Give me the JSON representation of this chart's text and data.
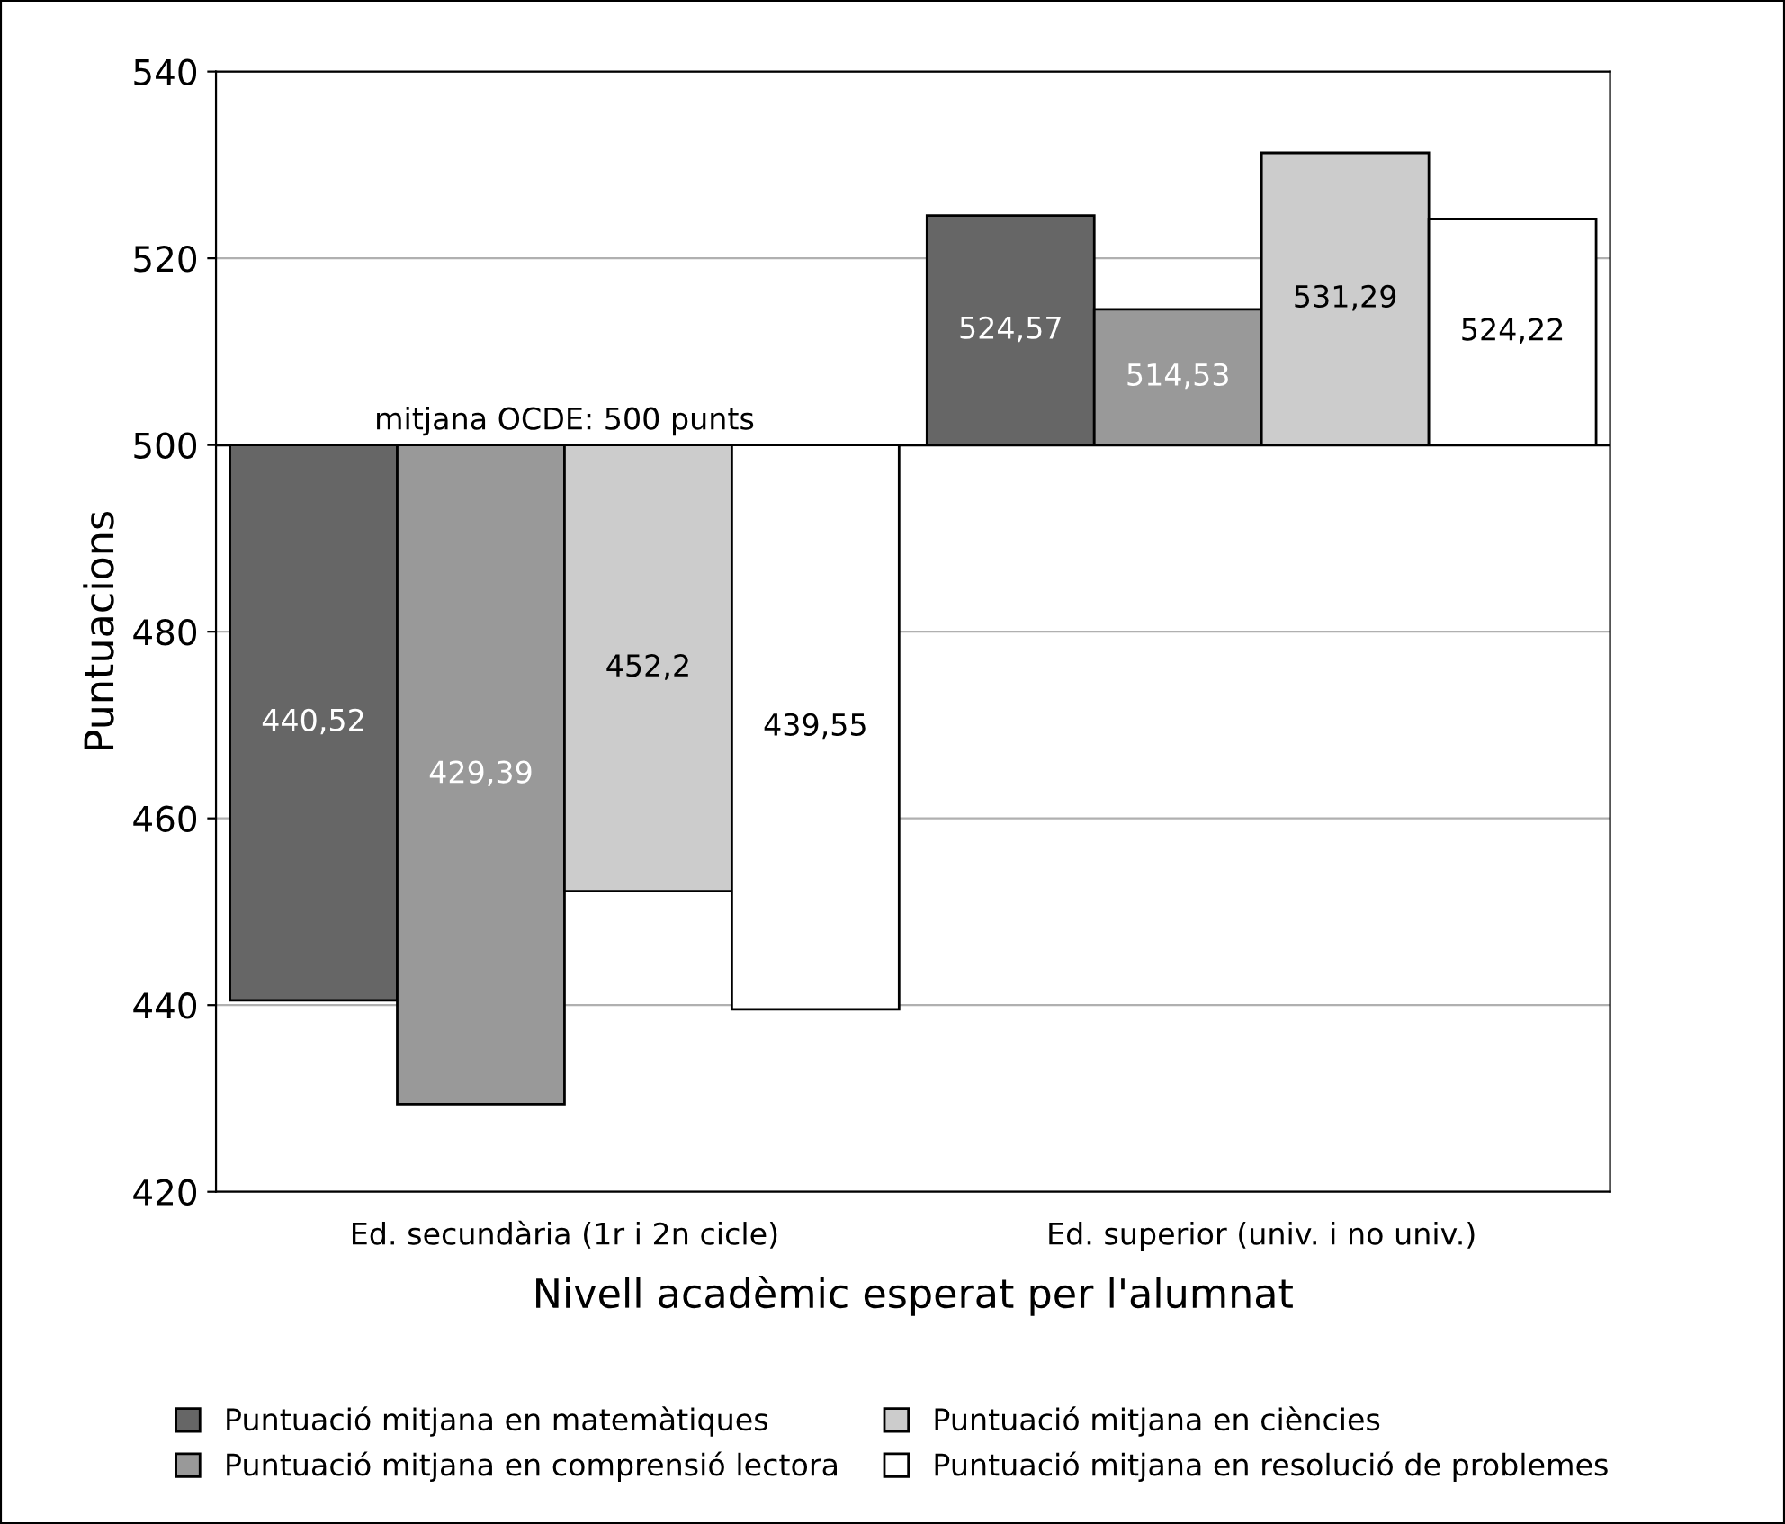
{
  "chart_data": {
    "type": "bar",
    "xlabel": "Nivell acadèmic esperat per l'alumnat",
    "ylabel": "Puntuacions",
    "categories": [
      "Ed. secundària (1r i 2n cicle)",
      "Ed. superior (univ. i no univ.)"
    ],
    "series": [
      {
        "name": "Puntuació mitjana en matemàtiques",
        "color": "#666666",
        "base": [
          500,
          500
        ],
        "values": [
          -59.48,
          24.57
        ],
        "value_labels": [
          "440,52",
          "524,57"
        ]
      },
      {
        "name": "Puntuació mitjana en comprensió lectora",
        "color": "#999999",
        "base": [
          500,
          500
        ],
        "values": [
          -70.61,
          14.53
        ],
        "value_labels": [
          "429,39",
          "514,53"
        ]
      },
      {
        "name": "Puntuació mitjana en ciències",
        "color": "#cccccc",
        "base": [
          500,
          500
        ],
        "values": [
          -47.8,
          31.29
        ],
        "value_labels": [
          "452,2",
          "531,29"
        ]
      },
      {
        "name": "Puntuació mitjana en resolució de problemes",
        "color": "#ffffff",
        "base": [
          500,
          500
        ],
        "values": [
          -60.45,
          24.22
        ],
        "value_labels": [
          "439,55",
          "524,22"
        ]
      }
    ],
    "ylim": [
      420,
      540
    ],
    "yticks": [
      420,
      440,
      460,
      480,
      500,
      520,
      540
    ],
    "ref_lines": [
      {
        "axis": "y",
        "value": 500,
        "label": "mitjana OCDE: 500 punts",
        "color": "#000000"
      }
    ],
    "grid": "y",
    "legend": "bottom"
  }
}
